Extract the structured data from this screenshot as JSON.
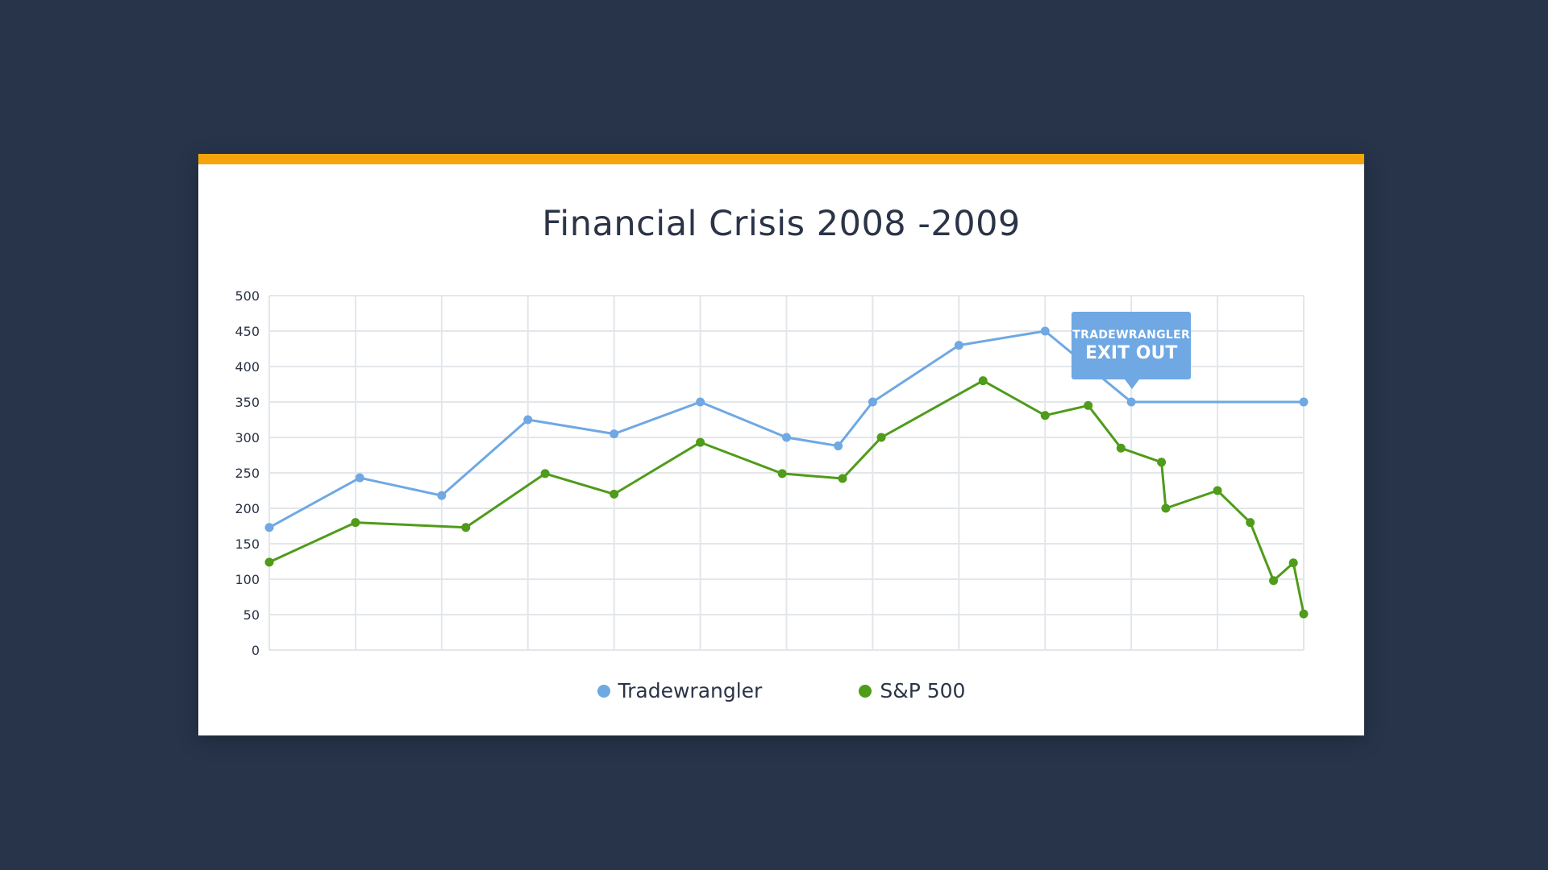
{
  "theme": {
    "background": "#27344a",
    "card": "#ffffff",
    "accent": "#f5a50b",
    "grid": "#e3e6ea",
    "text": "#2b3447"
  },
  "callout": {
    "line1": "TRADEWRANGLER",
    "line2": "EXIT OUT",
    "color": "#6fa8e3",
    "anchor_x": 10,
    "anchor_y": 350
  },
  "chart_data": {
    "type": "line",
    "title": "Financial Crisis 2008 -2009",
    "xlabel": "",
    "ylabel": "",
    "xlim": [
      0,
      12
    ],
    "ylim": [
      0,
      500
    ],
    "yticks": [
      0,
      50,
      100,
      150,
      200,
      250,
      300,
      350,
      400,
      450,
      500
    ],
    "grid": true,
    "legend_position": "bottom-center",
    "series": [
      {
        "name": "Tradewrangler",
        "color": "#6fa8e3",
        "points": [
          [
            0,
            173
          ],
          [
            1.05,
            243
          ],
          [
            2.0,
            218
          ],
          [
            3.0,
            325
          ],
          [
            4.0,
            305
          ],
          [
            5.0,
            350
          ],
          [
            6.0,
            300
          ],
          [
            6.6,
            288
          ],
          [
            7.0,
            350
          ],
          [
            8.0,
            430
          ],
          [
            9.0,
            450
          ],
          [
            10.0,
            350
          ],
          [
            12.0,
            350
          ]
        ]
      },
      {
        "name": "S&P 500",
        "color": "#4f9b1a",
        "points": [
          [
            0,
            124
          ],
          [
            1.0,
            180
          ],
          [
            2.28,
            173
          ],
          [
            3.2,
            249
          ],
          [
            4.0,
            220
          ],
          [
            5.0,
            293
          ],
          [
            5.95,
            249
          ],
          [
            6.65,
            242
          ],
          [
            7.1,
            300
          ],
          [
            8.28,
            380
          ],
          [
            9.0,
            331
          ],
          [
            9.5,
            345
          ],
          [
            9.88,
            285
          ],
          [
            10.35,
            265
          ],
          [
            10.4,
            200
          ],
          [
            11.0,
            225
          ],
          [
            11.38,
            180
          ],
          [
            11.65,
            98
          ],
          [
            11.88,
            123
          ],
          [
            12.0,
            51
          ]
        ]
      }
    ]
  }
}
